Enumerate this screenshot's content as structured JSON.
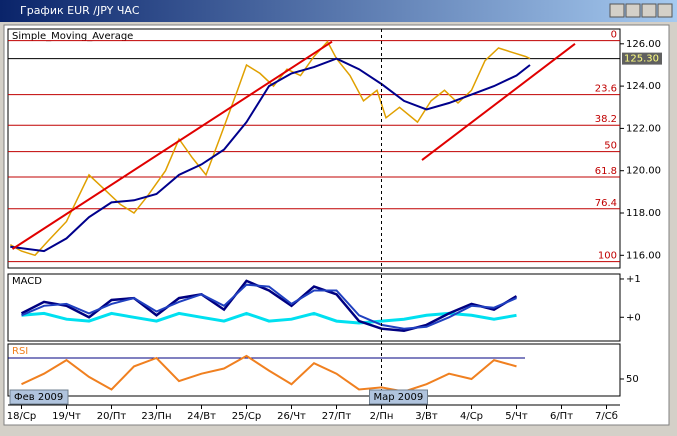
{
  "window_title": "График EUR /JPY ЧАС",
  "chart_data": [
    {
      "type": "line",
      "title": "Simple_Moving_Average",
      "xlim": [
        -0.3,
        13.3
      ],
      "ylim": [
        115.4,
        126.7
      ],
      "yticks": [
        {
          "value": 126,
          "label": "126.00"
        },
        {
          "value": 124,
          "label": "124.00"
        },
        {
          "value": 122,
          "label": "122.00"
        },
        {
          "value": 120,
          "label": "120.00"
        },
        {
          "value": 118,
          "label": "118.00"
        },
        {
          "value": 116,
          "label": "116.00"
        }
      ],
      "categories": [
        "18/Ср",
        "19/Чт",
        "20/Пт",
        "23/Пн",
        "24/Вт",
        "25/Ср",
        "26/Чт",
        "27/Пт",
        "2/Пн",
        "3/Вт",
        "4/Ср",
        "5/Чт",
        "6/Пт",
        "7/Сб"
      ],
      "months": [
        {
          "value": -0.2,
          "label": "Фев 2009"
        },
        {
          "value": 8,
          "label": "Мар 2009"
        }
      ],
      "current_price": {
        "value": 125.3,
        "label": "125.30"
      },
      "fib_levels": [
        {
          "value": 126.15,
          "label": "0"
        },
        {
          "value": 123.6,
          "label": "23.6"
        },
        {
          "value": 122.15,
          "label": "38.2"
        },
        {
          "value": 120.9,
          "label": "50"
        },
        {
          "value": 119.7,
          "label": "61.8"
        },
        {
          "value": 118.2,
          "label": "76.4"
        },
        {
          "value": 115.7,
          "label": "100"
        }
      ],
      "series": [
        {
          "color": "#e0a000",
          "width": 1.5,
          "x": [
            -0.25,
            0,
            0.3,
            0.6,
            1.0,
            1.5,
            1.8,
            2.2,
            2.5,
            2.8,
            3.2,
            3.5,
            3.8,
            4.1,
            4.4,
            4.8,
            5.0,
            5.3,
            5.6,
            5.9,
            6.2,
            6.5,
            6.8,
            7.0,
            7.3,
            7.6,
            7.9,
            8.1,
            8.4,
            8.8,
            9.1,
            9.4,
            9.7,
            10.0,
            10.3,
            10.6,
            10.9,
            11.2,
            11.3
          ],
          "values": [
            116.5,
            116.2,
            116.0,
            116.7,
            117.6,
            119.8,
            119.2,
            118.4,
            118.0,
            118.8,
            120.0,
            121.5,
            120.6,
            119.8,
            121.5,
            123.8,
            125.0,
            124.6,
            124.0,
            124.8,
            124.5,
            125.4,
            126.1,
            125.3,
            124.5,
            123.3,
            123.8,
            122.5,
            123.0,
            122.3,
            123.3,
            123.8,
            123.2,
            123.8,
            125.2,
            125.8,
            125.6,
            125.4,
            125.3
          ]
        },
        {
          "color": "#00008c",
          "width": 2,
          "x": [
            -0.25,
            0.5,
            1.0,
            1.5,
            2.0,
            2.5,
            3.0,
            3.5,
            4.0,
            4.5,
            5.0,
            5.5,
            6.0,
            6.5,
            7.0,
            7.5,
            8.0,
            8.5,
            9.0,
            9.5,
            10.0,
            10.5,
            11.0,
            11.3
          ],
          "values": [
            116.4,
            116.2,
            116.8,
            117.8,
            118.5,
            118.6,
            118.9,
            119.8,
            120.3,
            121.0,
            122.3,
            124.0,
            124.6,
            124.9,
            125.3,
            124.8,
            124.1,
            123.3,
            122.9,
            123.2,
            123.6,
            124.0,
            124.5,
            125.0
          ]
        },
        {
          "color": "#e00000",
          "width": 2,
          "x": [
            -0.2,
            6.9
          ],
          "values": [
            116.3,
            126.1
          ]
        },
        {
          "color": "#e00000",
          "width": 2,
          "x": [
            8.9,
            12.3
          ],
          "values": [
            120.5,
            126.0
          ]
        }
      ]
    },
    {
      "type": "line",
      "title": "MACD",
      "ylim": [
        -0.62,
        1.13
      ],
      "yticks": [
        {
          "value": 1,
          "label": "+1"
        },
        {
          "value": 0,
          "label": "+0"
        }
      ],
      "series": [
        {
          "color": "#00e0f0",
          "width": 3,
          "x": [
            0,
            0.5,
            1,
            1.5,
            2,
            2.5,
            3,
            3.5,
            4,
            4.5,
            5,
            5.5,
            6,
            6.5,
            7,
            7.5,
            8,
            8.5,
            9,
            9.5,
            10,
            10.5,
            11
          ],
          "values": [
            0.05,
            0.1,
            -0.05,
            -0.1,
            0.1,
            0.0,
            -0.1,
            0.1,
            0.0,
            -0.1,
            0.1,
            -0.1,
            -0.05,
            0.1,
            -0.1,
            -0.15,
            -0.1,
            -0.05,
            0.05,
            0.1,
            0.05,
            -0.05,
            0.05
          ]
        },
        {
          "color": "#000080",
          "width": 2.5,
          "x": [
            0,
            0.5,
            1,
            1.5,
            2,
            2.5,
            3,
            3.5,
            4,
            4.5,
            5,
            5.5,
            6,
            6.5,
            7,
            7.5,
            8,
            8.5,
            9,
            9.5,
            10,
            10.5,
            11
          ],
          "values": [
            0.1,
            0.4,
            0.3,
            0.0,
            0.45,
            0.5,
            0.05,
            0.5,
            0.6,
            0.2,
            0.95,
            0.7,
            0.3,
            0.8,
            0.6,
            -0.1,
            -0.3,
            -0.35,
            -0.2,
            0.1,
            0.35,
            0.2,
            0.55
          ]
        },
        {
          "color": "#2040c0",
          "width": 2,
          "x": [
            0,
            0.5,
            1,
            1.5,
            2,
            2.5,
            3,
            3.5,
            4,
            4.5,
            5,
            5.5,
            6,
            6.5,
            7,
            7.5,
            8,
            8.5,
            9,
            9.5,
            10,
            10.5,
            11
          ],
          "values": [
            0.05,
            0.3,
            0.35,
            0.1,
            0.35,
            0.5,
            0.15,
            0.4,
            0.6,
            0.3,
            0.85,
            0.8,
            0.35,
            0.7,
            0.7,
            0.05,
            -0.2,
            -0.3,
            -0.25,
            0.0,
            0.3,
            0.25,
            0.5
          ]
        }
      ]
    },
    {
      "type": "line",
      "title": "RSI",
      "ylim": [
        33.8,
        83.3
      ],
      "yticks": [
        50
      ],
      "levels": [
        70
      ],
      "series": [
        {
          "color": "#f08020",
          "width": 2,
          "x": [
            0,
            0.5,
            1,
            1.5,
            2,
            2.5,
            3,
            3.5,
            4,
            4.5,
            5,
            5.5,
            6,
            6.5,
            7,
            7.5,
            8,
            8.5,
            9,
            9.5,
            10,
            10.5,
            11
          ],
          "values": [
            45,
            55,
            68,
            52,
            40,
            62,
            70,
            48,
            55,
            60,
            72,
            58,
            45,
            65,
            55,
            40,
            42,
            38,
            45,
            55,
            50,
            68,
            62
          ]
        }
      ]
    }
  ]
}
